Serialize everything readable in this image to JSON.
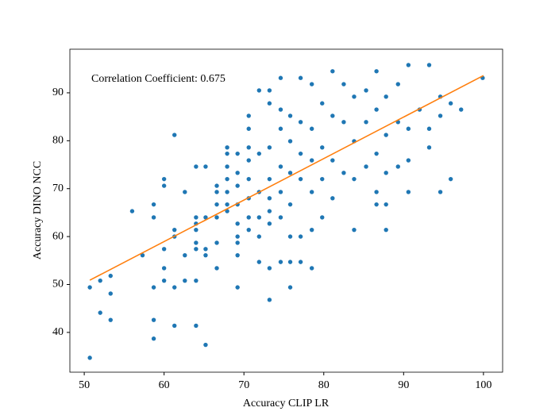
{
  "chart_data": {
    "type": "scatter",
    "xlabel": "Accuracy CLIP LR",
    "ylabel": "Accuracy DINO NCC",
    "annotation": "Correlation Coefficient: 0.675",
    "xlim": [
      48.2,
      102.4
    ],
    "ylim": [
      31.7,
      99.1
    ],
    "xticks": [
      50,
      60,
      70,
      80,
      90,
      100
    ],
    "yticks": [
      40,
      50,
      60,
      70,
      80,
      90
    ],
    "grid": false,
    "series": [
      {
        "color": "#1f77b4",
        "x": [
          50.7,
          50.7,
          52,
          52,
          53.3,
          53.3,
          53.3,
          56,
          57.3,
          58.7,
          58.7,
          58.7,
          58.7,
          58.7,
          60,
          60,
          60,
          60,
          60,
          61.3,
          61.3,
          61.3,
          61.3,
          61.3,
          62.6,
          62.6,
          62.6,
          64,
          64,
          64,
          64,
          64,
          64,
          64,
          64,
          65.2,
          65.2,
          65.2,
          65.2,
          65.2,
          66.6,
          66.6,
          66.6,
          66.6,
          66.6,
          66.6,
          67.9,
          67.9,
          67.9,
          67.9,
          67.9,
          67.9,
          67.9,
          69.2,
          69.2,
          69.2,
          69.2,
          69.2,
          69.2,
          69.2,
          69.2,
          69.2,
          70.6,
          70.6,
          70.6,
          70.6,
          70.6,
          70.6,
          70.6,
          70.6,
          71.9,
          71.9,
          71.9,
          71.9,
          71.9,
          71.9,
          73.2,
          73.2,
          73.2,
          73.2,
          73.2,
          73.2,
          73.2,
          73.2,
          73.2,
          74.6,
          74.6,
          74.6,
          74.6,
          74.6,
          74.6,
          74.6,
          75.8,
          75.8,
          75.8,
          75.8,
          75.8,
          75.8,
          75.8,
          77.1,
          77.1,
          77.1,
          77.1,
          77.1,
          77.1,
          78.5,
          78.5,
          78.5,
          78.5,
          78.5,
          78.5,
          79.8,
          79.8,
          79.8,
          79.8,
          81.1,
          81.1,
          81.1,
          81.1,
          82.5,
          82.5,
          82.5,
          83.8,
          83.8,
          83.8,
          83.8,
          85.3,
          85.3,
          85.3,
          86.6,
          86.6,
          86.6,
          86.6,
          86.6,
          87.8,
          87.8,
          87.8,
          87.8,
          87.8,
          89.3,
          89.3,
          89.3,
          90.6,
          90.6,
          90.6,
          90.6,
          92,
          93.2,
          93.2,
          93.2,
          94.6,
          94.6,
          94.6,
          95.9,
          95.9,
          97.2,
          99.9
        ],
        "y": [
          49.4,
          34.7,
          50.8,
          44.1,
          51.8,
          48.1,
          42.6,
          65.3,
          56.1,
          66.7,
          64,
          49.4,
          42.6,
          38.7,
          72,
          70.6,
          57.4,
          53.4,
          50.8,
          81.2,
          61.4,
          60,
          49.4,
          41.4,
          69.3,
          56.1,
          50.8,
          74.6,
          64,
          62.7,
          61.4,
          58.7,
          57.4,
          50.8,
          41.4,
          74.6,
          64,
          57.4,
          56.1,
          37.4,
          70.6,
          69.3,
          66.7,
          64,
          58.7,
          53.4,
          78.6,
          77.3,
          74.6,
          72,
          69.3,
          66.7,
          65.3,
          77.3,
          73.3,
          70.6,
          66.7,
          62.7,
          60,
          58.7,
          56.1,
          49.4,
          85.2,
          82.5,
          78.6,
          75.9,
          72,
          68,
          64,
          61.4,
          90.5,
          77.3,
          69.3,
          64,
          60,
          54.7,
          90.5,
          87.8,
          78.6,
          72,
          68,
          65.3,
          62.7,
          53.4,
          46.8,
          93.1,
          86.5,
          82.5,
          74.6,
          69.3,
          64,
          54.7,
          85.2,
          79.9,
          73.3,
          66.7,
          60,
          54.7,
          49.4,
          93.1,
          83.9,
          77.3,
          72,
          60,
          54.7,
          91.8,
          82.5,
          75.9,
          69.3,
          61.4,
          53.4,
          87.8,
          78.6,
          72,
          64,
          94.5,
          85.2,
          75.9,
          68,
          91.8,
          83.9,
          73.3,
          89.2,
          79.9,
          72,
          61.4,
          90.5,
          83.9,
          74.6,
          94.5,
          86.5,
          77.3,
          69.3,
          66.7,
          89.2,
          81.2,
          73.3,
          66.7,
          61.4,
          91.8,
          83.9,
          74.6,
          95.8,
          82.5,
          75.9,
          69.3,
          86.5,
          95.8,
          82.5,
          78.6,
          89.2,
          85.2,
          69.3,
          87.8,
          72,
          86.5,
          93.1
        ]
      }
    ],
    "fit_line": {
      "color": "#ff7f0e",
      "x": [
        50.7,
        100
      ],
      "y": [
        50.9,
        93.6
      ]
    }
  }
}
